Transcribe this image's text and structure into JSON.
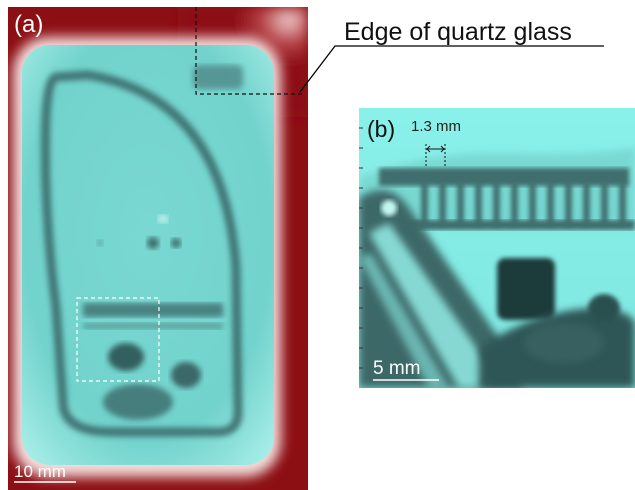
{
  "panel_a": {
    "label": "(a)",
    "scale_label": "10 mm"
  },
  "panel_b": {
    "label": "(b)",
    "dimension_label": "1.3 mm",
    "scale_label": "5 mm"
  },
  "annotation": {
    "text": "Edge of quartz glass"
  },
  "colors": {
    "background_red": "#8c0f14",
    "cyan_image": "#7fe6df",
    "dark_features": "#2d5a5a",
    "callout_line": "#000000"
  }
}
